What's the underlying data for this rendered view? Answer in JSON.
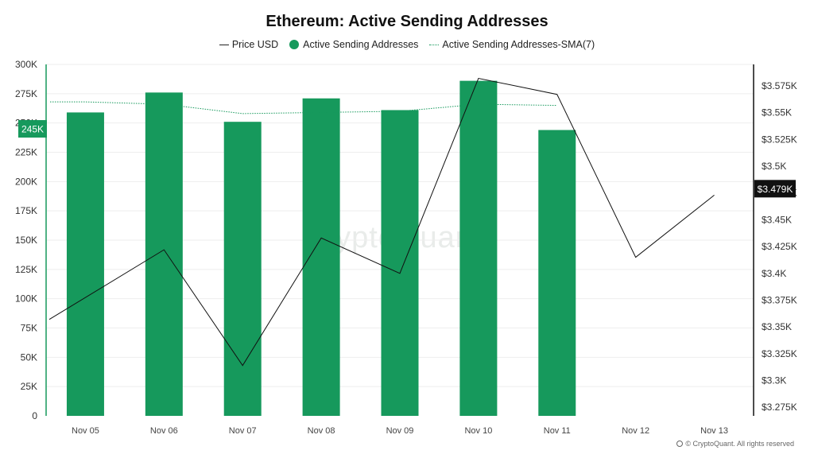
{
  "chart_data": {
    "type": "bar",
    "title": "Ethereum: Active Sending Addresses",
    "categories": [
      "Nov 05",
      "Nov 06",
      "Nov 07",
      "Nov 08",
      "Nov 09",
      "Nov 10",
      "Nov 11",
      "Nov 12",
      "Nov 13"
    ],
    "series": [
      {
        "name": "Price USD",
        "type": "line",
        "axis": "right",
        "color": "#111111",
        "values": [
          3357,
          3422,
          3314,
          3433,
          3400,
          3582,
          3567,
          3415,
          3473
        ]
      },
      {
        "name": "Active Sending Addresses",
        "type": "bar",
        "axis": "left",
        "color": "#16995c",
        "values": [
          259000,
          276000,
          251000,
          271000,
          261000,
          286000,
          244000,
          null,
          null
        ]
      },
      {
        "name": "Active Sending Addresses-SMA(7)",
        "type": "line",
        "style": "dotted",
        "axis": "left",
        "color": "#16995c",
        "values": [
          268000,
          266000,
          258000,
          259000,
          260000,
          266000,
          265000,
          null,
          null
        ]
      }
    ],
    "left_axis": {
      "ylim": [
        0,
        300000
      ],
      "tick_labels": [
        "0",
        "25K",
        "50K",
        "75K",
        "100K",
        "125K",
        "150K",
        "175K",
        "200K",
        "225K",
        "250K",
        "275K",
        "300K"
      ],
      "tick_values": [
        0,
        25000,
        50000,
        75000,
        100000,
        125000,
        150000,
        175000,
        200000,
        225000,
        250000,
        275000,
        300000
      ],
      "highlight_label": "245K",
      "highlight_value": 245000
    },
    "right_axis": {
      "ylim": [
        3267,
        3595
      ],
      "tick_labels": [
        "$3.275K",
        "$3.3K",
        "$3.325K",
        "$3.35K",
        "$3.375K",
        "$3.4K",
        "$3.425K",
        "$3.45K",
        "$3.475K",
        "$3.5K",
        "$3.525K",
        "$3.55K",
        "$3.575K"
      ],
      "tick_values": [
        3275,
        3300,
        3325,
        3350,
        3375,
        3400,
        3425,
        3450,
        3475,
        3500,
        3525,
        3550,
        3575
      ],
      "highlight_label": "$3.479K",
      "highlight_value": 3479
    },
    "grid": true,
    "legend_position": "top-center"
  },
  "watermark": "CryptoQuant",
  "footer": {
    "credit": "© CryptoQuant. All rights reserved"
  },
  "colors": {
    "bar": "#16995c",
    "price_line": "#111111",
    "grid": "#eeeeee",
    "highlight_dark": "#111111"
  }
}
